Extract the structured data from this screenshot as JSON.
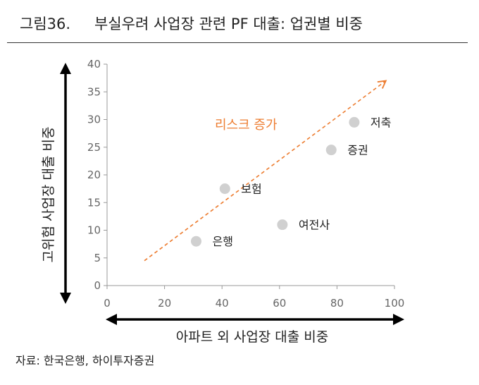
{
  "header": {
    "figure_number": "그림36.",
    "title": "부실우려 사업장 관련 PF 대출: 업권별 비중"
  },
  "source": "자료: 한국은행, 하이투자증권",
  "colors": {
    "point": "#d0d0d0",
    "trend": "#ed7d31",
    "axis": "#999999",
    "arrow": "#000000"
  },
  "chart_data": {
    "type": "scatter",
    "title": "부실우려 사업장 관련 PF 대출: 업권별 비중",
    "xlabel": "아파트 외 사업장 대출 비중",
    "ylabel": "고위험 사업장 대출 비중",
    "xlim": [
      0,
      100
    ],
    "ylim": [
      0,
      40
    ],
    "x_ticks": [
      0,
      20,
      40,
      60,
      80,
      100
    ],
    "y_ticks": [
      0,
      5,
      10,
      15,
      20,
      25,
      30,
      35,
      40
    ],
    "grid": false,
    "points": [
      {
        "label": "은행",
        "x": 31,
        "y": 8
      },
      {
        "label": "보험",
        "x": 41,
        "y": 17.5
      },
      {
        "label": "여전사",
        "x": 61,
        "y": 11
      },
      {
        "label": "증권",
        "x": 78,
        "y": 24.5
      },
      {
        "label": "저축",
        "x": 86,
        "y": 29.5
      }
    ],
    "trend_arrow": {
      "label": "리스크 증가",
      "from": [
        13,
        4.5
      ],
      "to": [
        97,
        37
      ]
    }
  }
}
